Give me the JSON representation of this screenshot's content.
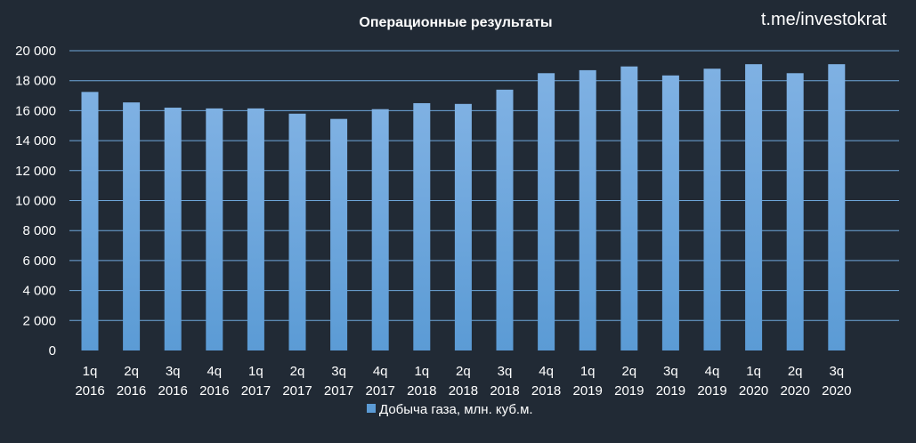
{
  "watermark": "t.me/investokrat",
  "colors": {
    "background": "#212a35",
    "bar": "#5b9bd5",
    "bar_light": "#7fb1e3",
    "grid": "#6fa8dc",
    "text": "#ffffff"
  },
  "chart_data": {
    "type": "bar",
    "title": "Операционные  результаты",
    "xlabel": "",
    "ylabel": "",
    "ylim": [
      0,
      20000
    ],
    "yticks": [
      0,
      2000,
      4000,
      6000,
      8000,
      10000,
      12000,
      14000,
      16000,
      18000,
      20000
    ],
    "ytick_labels": [
      "0",
      "2 000",
      "4 000",
      "6 000",
      "8 000",
      "10 000",
      "12 000",
      "14 000",
      "16 000",
      "18 000",
      "20 000"
    ],
    "grid": true,
    "legend_position": "bottom",
    "categories": [
      [
        "1q",
        "2016"
      ],
      [
        "2q",
        "2016"
      ],
      [
        "3q",
        "2016"
      ],
      [
        "4q",
        "2016"
      ],
      [
        "1q",
        "2017"
      ],
      [
        "2q",
        "2017"
      ],
      [
        "3q",
        "2017"
      ],
      [
        "4q",
        "2017"
      ],
      [
        "1q",
        "2018"
      ],
      [
        "2q",
        "2018"
      ],
      [
        "3q",
        "2018"
      ],
      [
        "4q",
        "2018"
      ],
      [
        "1q",
        "2019"
      ],
      [
        "2q",
        "2019"
      ],
      [
        "3q",
        "2019"
      ],
      [
        "4q",
        "2019"
      ],
      [
        "1q",
        "2020"
      ],
      [
        "2q",
        "2020"
      ],
      [
        "3q",
        "2020"
      ]
    ],
    "series": [
      {
        "name": "Добыча газа, млн. куб.м.",
        "values": [
          17250,
          16550,
          16200,
          16150,
          16150,
          15800,
          15450,
          16100,
          16500,
          16450,
          17400,
          18500,
          18700,
          18950,
          18350,
          18800,
          19100,
          18500,
          19100
        ]
      }
    ]
  }
}
